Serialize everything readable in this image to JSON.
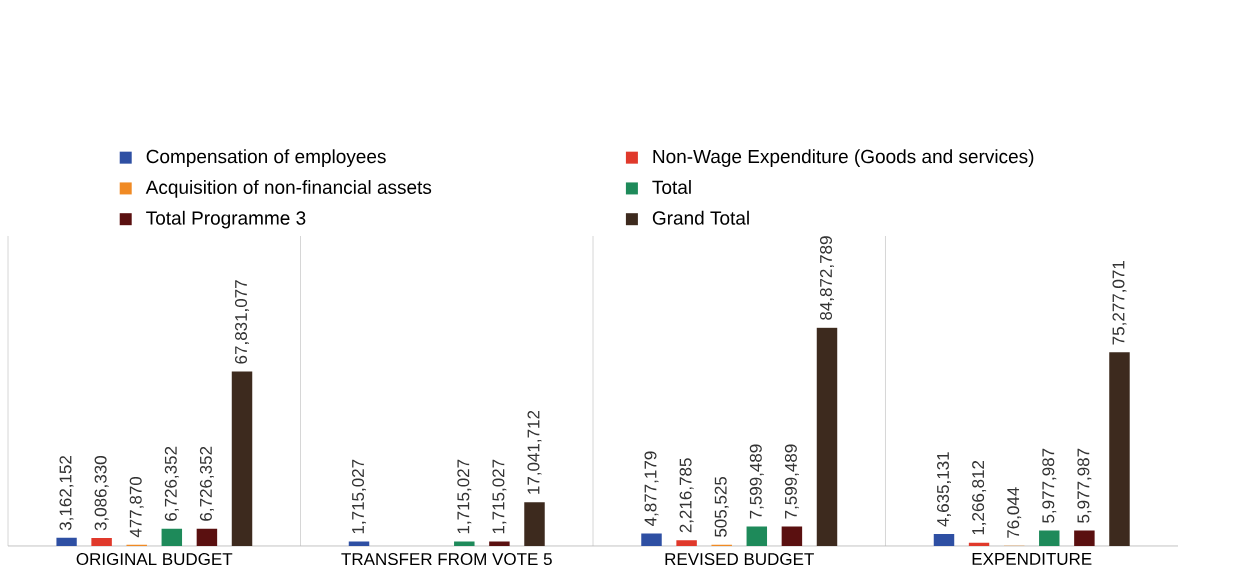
{
  "chart_data": {
    "type": "bar",
    "categories": [
      "ORIGINAL BUDGET",
      "TRANSFER FROM VOTE 5",
      "REVISED BUDGET",
      "EXPENDITURE"
    ],
    "series": [
      {
        "name": "Compensation of employees",
        "color": "#2e4fa3",
        "values": [
          3162152,
          1715027,
          4877179,
          4635131
        ],
        "value_labels": [
          "3,162,152",
          "1,715,027",
          "4,877,179",
          "4,635,131"
        ]
      },
      {
        "name": "Non-Wage Expenditure (Goods and services)",
        "color": "#e0392b",
        "values": [
          3086330,
          null,
          2216785,
          1266812
        ],
        "value_labels": [
          "3,086,330",
          null,
          "2,216,785",
          "1,266,812"
        ]
      },
      {
        "name": "Acquisition of non-financial assets",
        "color": "#f08a24",
        "values": [
          477870,
          null,
          505525,
          76044
        ],
        "value_labels": [
          "477,870",
          null,
          "505,525",
          "76,044"
        ]
      },
      {
        "name": "Total",
        "color": "#1e8a5a",
        "values": [
          6726352,
          1715027,
          7599489,
          5977987
        ],
        "value_labels": [
          "6,726,352",
          "1,715,027",
          "7,599,489",
          "5,977,987"
        ]
      },
      {
        "name": "Total Programme 3",
        "color": "#5a1010",
        "values": [
          6726352,
          1715027,
          7599489,
          5977987
        ],
        "value_labels": [
          "6,726,352",
          "1,715,027",
          "7,599,489",
          "5,977,987"
        ]
      },
      {
        "name": "Grand Total",
        "color": "#3d2a1e",
        "values": [
          67831077,
          17041712,
          84872789,
          75277071
        ],
        "value_labels": [
          "67,831,077",
          "17,041,712",
          "84,872,789",
          "75,277,071"
        ]
      }
    ],
    "data_labels": true,
    "legend": "top",
    "grid": false
  }
}
